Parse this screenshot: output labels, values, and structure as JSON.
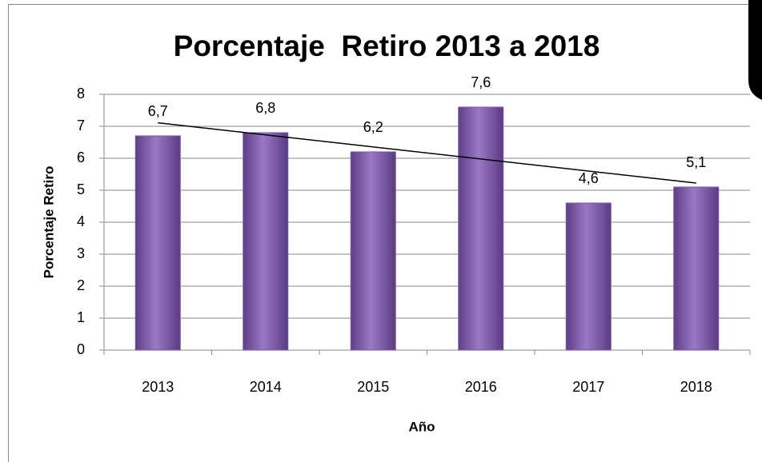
{
  "chart_data": {
    "type": "bar",
    "title": "Porcentaje  Retiro 2013 a 2018",
    "x_label": "Año",
    "y_label": "Porcentaje Retiro",
    "categories": [
      "2013",
      "2014",
      "2015",
      "2016",
      "2017",
      "2018"
    ],
    "values": [
      6.7,
      6.8,
      6.2,
      7.6,
      4.6,
      5.1
    ],
    "value_labels": [
      "6,7",
      "6,8",
      "6,2",
      "7,6",
      "4,6",
      "5,1"
    ],
    "color": "#7b56a6",
    "ylim": [
      0,
      8
    ],
    "yticks": [
      0,
      1,
      2,
      3,
      4,
      5,
      6,
      7,
      8
    ],
    "grid": true,
    "trendline": "linear"
  }
}
